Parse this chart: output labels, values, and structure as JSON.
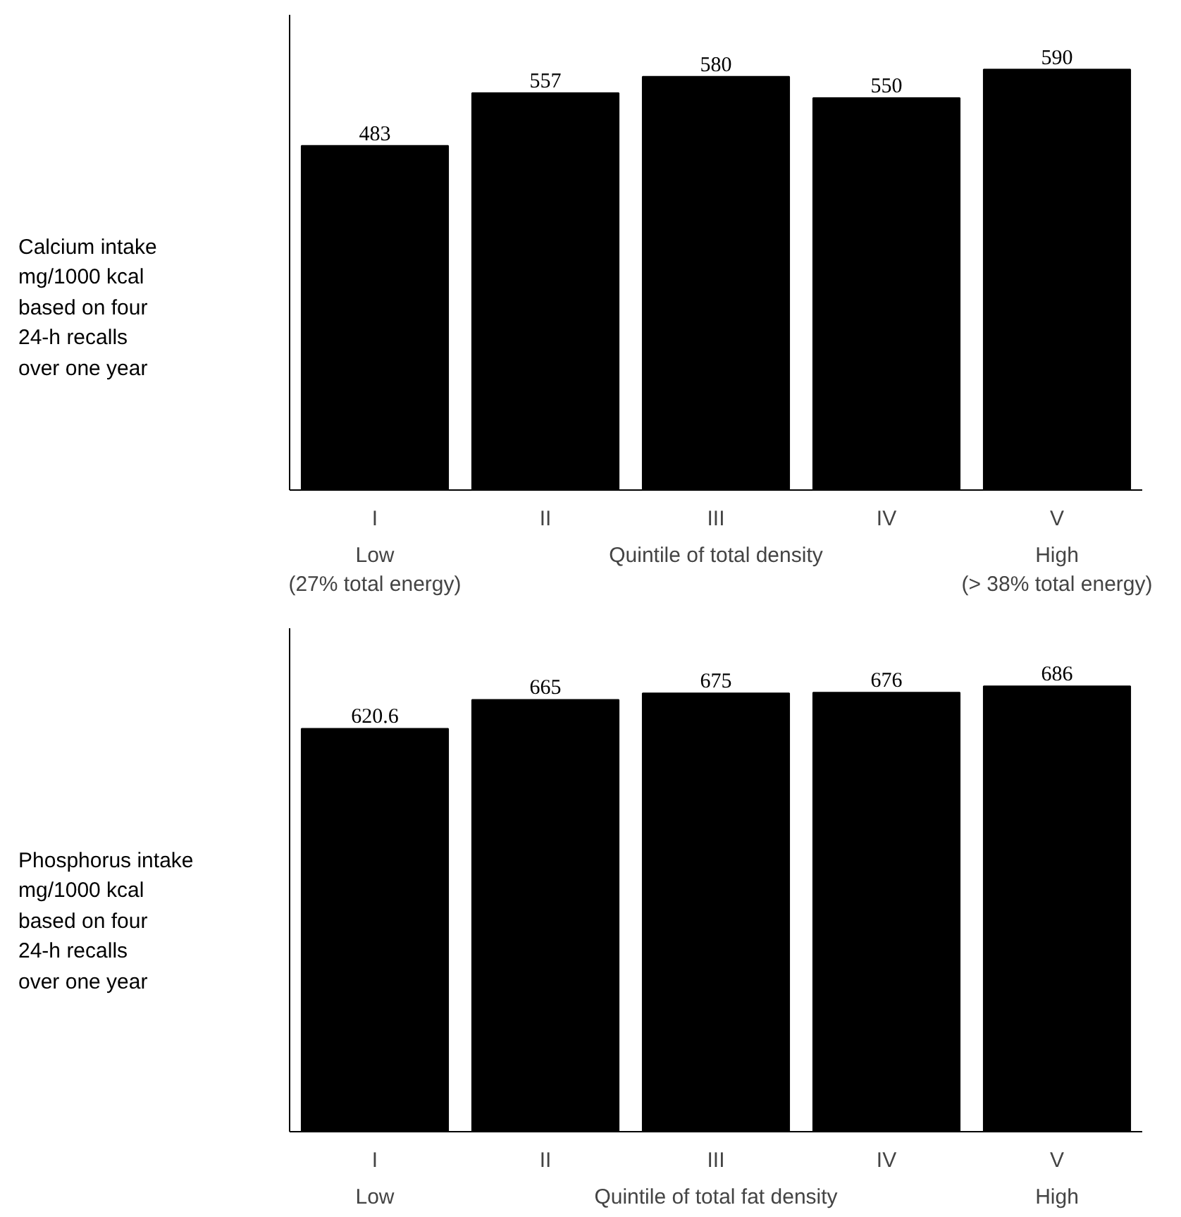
{
  "chart_data": [
    {
      "type": "bar",
      "ylabel": "Calcium intake\nmg/1000 kcal\nbased on four\n24-h recalls\nover one year",
      "xlabel": "Quintile of total density",
      "categories": [
        "I",
        "II",
        "III",
        "IV",
        "V"
      ],
      "values": [
        483,
        557,
        580,
        550,
        590
      ],
      "color": "#000000",
      "data_labels": true,
      "grid": false,
      "annotations": [
        "Low\n(27% total energy)",
        "High\n(> 38% total energy)"
      ]
    },
    {
      "type": "bar",
      "ylabel": "Phosphorus intake\nmg/1000 kcal\nbased on four\n24-h recalls\nover one year",
      "xlabel": "Quintile of total fat density",
      "categories": [
        "I",
        "II",
        "III",
        "IV",
        "V"
      ],
      "values": [
        620.6,
        665,
        675,
        676,
        686
      ],
      "color": "#000000",
      "data_labels": true,
      "grid": false,
      "annotations": [
        "Low",
        "High"
      ]
    }
  ]
}
